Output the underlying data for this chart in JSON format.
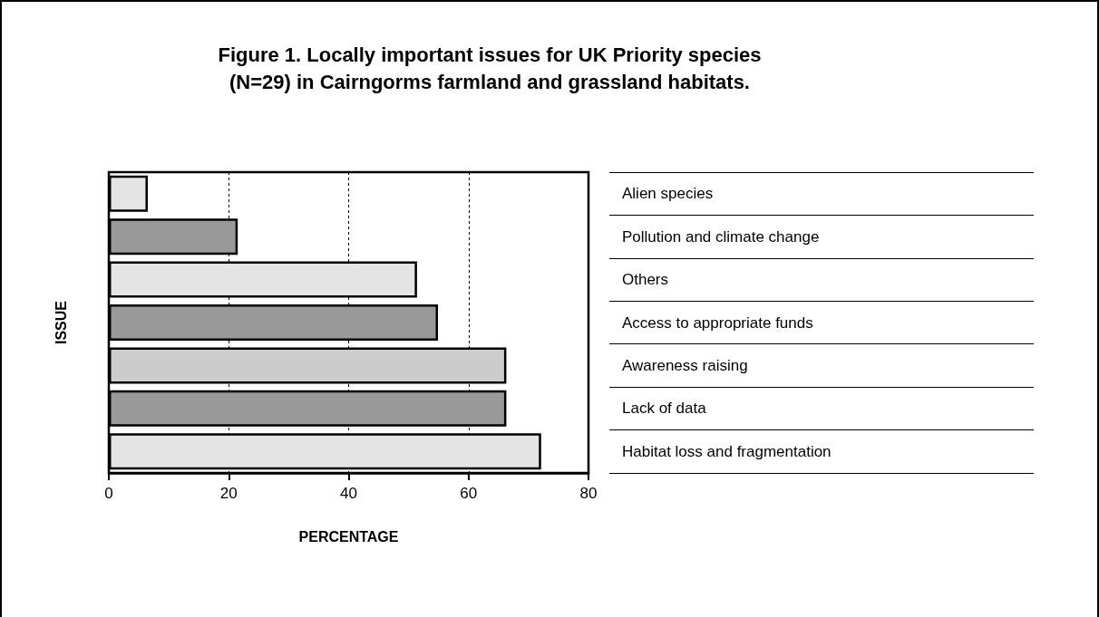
{
  "chart_data": {
    "type": "bar",
    "orientation": "horizontal",
    "title": "Figure 1. Locally important issues for UK Priority species\n(N=29) in Cairngorms farmland and grassland habitats.",
    "xlabel": "PERCENTAGE",
    "ylabel": "ISSUE",
    "categories": [
      "Alien species",
      "Pollution and climate change",
      "Others",
      "Access to appropriate funds",
      "Awareness raising",
      "Lack of data",
      "Habitat loss and fragmentation"
    ],
    "values": [
      6.5,
      21.5,
      51.4,
      54.9,
      66.3,
      66.3,
      72.1
    ],
    "colors": [
      "#e4e4e4",
      "#999999",
      "#e4e4e4",
      "#999999",
      "#cccccc",
      "#999999",
      "#e4e4e4"
    ],
    "xlim": [
      0,
      80
    ],
    "xticks": [
      0,
      20,
      40,
      60,
      80
    ],
    "grid": "x"
  }
}
